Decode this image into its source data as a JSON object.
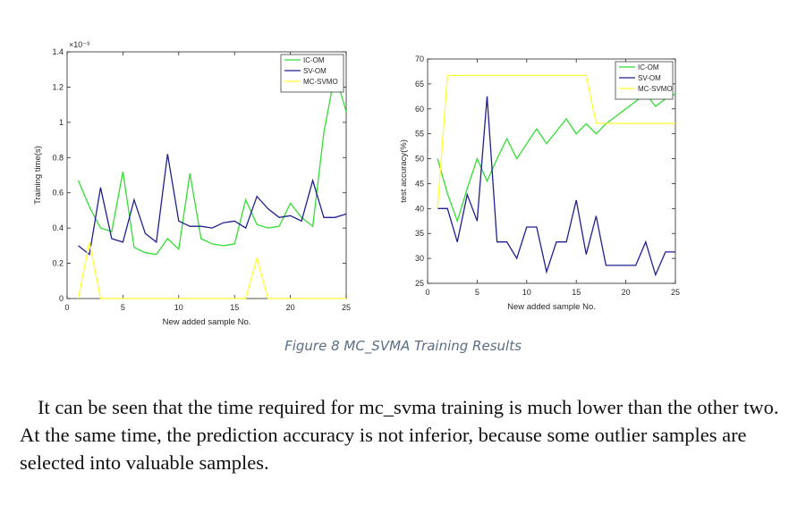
{
  "figure": {
    "caption": "Figure 8 MC_SVMA Training Results"
  },
  "body": {
    "paragraph": "It can be seen that the time required for mc_svma training is much lower than the other two. At the same time, the prediction accuracy is not inferior, because some outlier samples are selected into valuable samples."
  },
  "colors": {
    "ic_om": "#33dd33",
    "sv_om": "#1f1f8f",
    "mc_svmo": "#ffff33"
  },
  "chart_data": [
    {
      "type": "line",
      "title": "",
      "xlabel": "New added sample No.",
      "ylabel": "Training time(s)",
      "y_multiplier_label": "×10⁻³",
      "xlim": [
        0,
        25
      ],
      "ylim": [
        0,
        1.4
      ],
      "xticks": [
        0,
        5,
        10,
        15,
        20,
        25
      ],
      "yticks": [
        0,
        0.2,
        0.4,
        0.6,
        0.8,
        1,
        1.2,
        1.4
      ],
      "ytick_labels": [
        "0",
        "0.2",
        "0.4",
        "0.6",
        "0.8",
        "1",
        "1.2",
        "1.4"
      ],
      "legend_position": "top-right",
      "grid": false,
      "x": [
        1,
        2,
        3,
        4,
        5,
        6,
        7,
        8,
        9,
        10,
        11,
        12,
        13,
        14,
        15,
        16,
        17,
        18,
        19,
        20,
        21,
        22,
        23,
        24,
        25
      ],
      "series": [
        {
          "name": "IC-OM",
          "color_key": "ic_om",
          "values": [
            0.67,
            0.52,
            0.4,
            0.38,
            0.72,
            0.29,
            0.26,
            0.25,
            0.34,
            0.28,
            0.71,
            0.34,
            0.31,
            0.3,
            0.31,
            0.56,
            0.42,
            0.4,
            0.41,
            0.54,
            0.46,
            0.41,
            0.94,
            1.28,
            1.06
          ]
        },
        {
          "name": "SV-OM",
          "color_key": "sv_om",
          "values": [
            0.3,
            0.25,
            0.63,
            0.34,
            0.32,
            0.56,
            0.37,
            0.32,
            0.82,
            0.44,
            0.41,
            0.41,
            0.4,
            0.43,
            0.44,
            0.4,
            0.58,
            0.51,
            0.46,
            0.47,
            0.44,
            0.67,
            0.46,
            0.46,
            0.48
          ]
        },
        {
          "name": "MC-SVMO",
          "color_key": "mc_svmo",
          "values": [
            0,
            0.32,
            0,
            0,
            0,
            0,
            0,
            0,
            0,
            0,
            0,
            0,
            0,
            0,
            0,
            0,
            0.23,
            0,
            0,
            0,
            0,
            0,
            0,
            0,
            0
          ]
        }
      ]
    },
    {
      "type": "line",
      "title": "",
      "xlabel": "New added sample No.",
      "ylabel": "test accuracy(%)",
      "xlim": [
        0,
        25
      ],
      "ylim": [
        25,
        70
      ],
      "xticks": [
        0,
        5,
        10,
        15,
        20,
        25
      ],
      "yticks": [
        25,
        30,
        35,
        40,
        45,
        50,
        55,
        60,
        65,
        70
      ],
      "ytick_labels": [
        "25",
        "30",
        "35",
        "40",
        "45",
        "50",
        "55",
        "60",
        "65",
        "70"
      ],
      "legend_position": "top-right",
      "grid": false,
      "x": [
        1,
        2,
        3,
        4,
        5,
        6,
        7,
        8,
        9,
        10,
        11,
        12,
        13,
        14,
        15,
        16,
        17,
        18,
        19,
        20,
        21,
        22,
        23,
        24,
        25
      ],
      "series": [
        {
          "name": "IC-OM",
          "color_key": "ic_om",
          "values": [
            50,
            43,
            37.5,
            44,
            50,
            45.5,
            50,
            54,
            50,
            53,
            56,
            53,
            55.5,
            58,
            55,
            57,
            55,
            57,
            58.5,
            60,
            61.5,
            63,
            60.5,
            62,
            63
          ]
        },
        {
          "name": "SV-OM",
          "color_key": "sv_om",
          "values": [
            40,
            40,
            33.3,
            42.8,
            37.5,
            62.5,
            33.3,
            33.3,
            30,
            36.3,
            36.3,
            27.3,
            33.3,
            33.3,
            41.7,
            30.8,
            38.5,
            28.6,
            28.6,
            28.6,
            28.6,
            33.3,
            26.7,
            31.3,
            31.3
          ]
        },
        {
          "name": "MC-SVMO",
          "color_key": "mc_svmo",
          "values": [
            40,
            66.7,
            66.7,
            66.7,
            66.7,
            66.7,
            66.7,
            66.7,
            66.7,
            66.7,
            66.7,
            66.7,
            66.7,
            66.7,
            66.7,
            66.7,
            57.1,
            57.1,
            57.1,
            57.1,
            57.1,
            57.1,
            57.1,
            57.1,
            57.1
          ]
        }
      ]
    }
  ]
}
